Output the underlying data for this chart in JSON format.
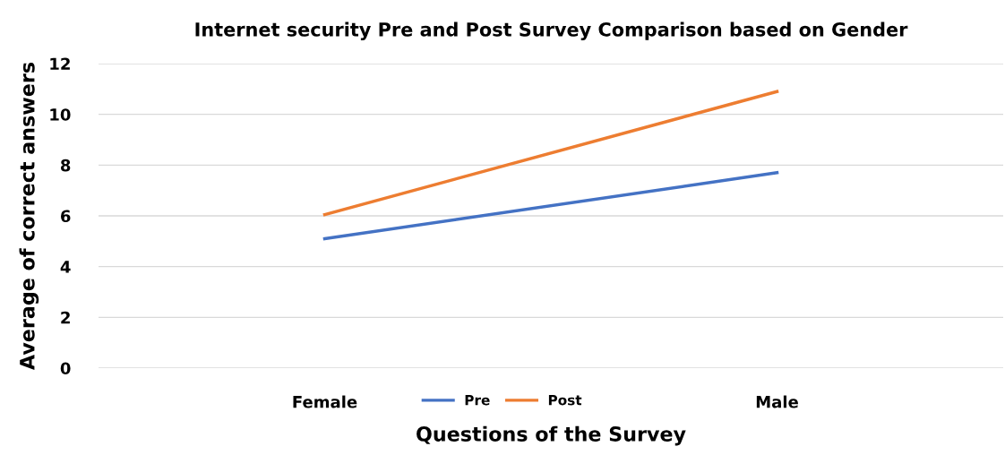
{
  "chart_data": {
    "type": "line",
    "title": "Internet security Pre and Post Survey Comparison based on Gender",
    "xlabel": "Questions of the Survey",
    "ylabel": "Average of correct answers",
    "categories": [
      "Female",
      "Male"
    ],
    "series": [
      {
        "name": "Pre",
        "color": "#4472c4",
        "values": [
          5.1,
          7.7
        ]
      },
      {
        "name": "Post",
        "color": "#ed7d31",
        "values": [
          6.05,
          10.9
        ]
      }
    ],
    "ylim": [
      0,
      12
    ],
    "yticks": [
      0,
      2,
      4,
      6,
      8,
      10,
      12
    ],
    "grid": "y",
    "legend": "bottom",
    "marker": "none",
    "line_style": "solid"
  }
}
